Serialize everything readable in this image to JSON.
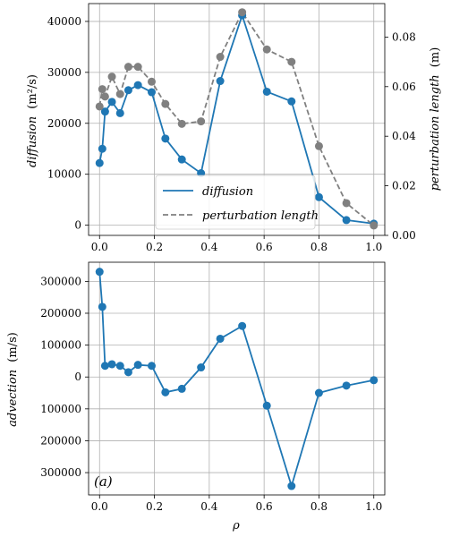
{
  "chart_data": [
    {
      "type": "line",
      "x": [
        0.0,
        0.01,
        0.02,
        0.045,
        0.075,
        0.105,
        0.14,
        0.19,
        0.24,
        0.3,
        0.37,
        0.44,
        0.52,
        0.61,
        0.7,
        0.8,
        0.9,
        1.0
      ],
      "series": [
        {
          "name": "diffusion",
          "axis": "left",
          "color": "#1f77b4",
          "style": "solid",
          "values": [
            12200,
            15000,
            22300,
            24200,
            22000,
            26500,
            27500,
            26100,
            17000,
            12900,
            10200,
            28300,
            41200,
            26200,
            24300,
            5500,
            1000,
            300
          ]
        },
        {
          "name": "perturbation length",
          "axis": "right",
          "color": "#808080",
          "style": "dashed",
          "values": [
            0.052,
            0.059,
            0.056,
            0.064,
            0.057,
            0.068,
            0.068,
            0.062,
            0.053,
            0.045,
            0.046,
            0.072,
            0.09,
            0.075,
            0.07,
            0.036,
            0.013,
            0.004
          ]
        }
      ],
      "xlim": [
        -0.04,
        1.04
      ],
      "ylim": [
        -2000,
        43500
      ],
      "y2lim": [
        0.0,
        0.0935
      ],
      "x_ticks": [
        "0.0",
        "0.2",
        "0.4",
        "0.6",
        "0.8",
        "1.0"
      ],
      "y_ticks": [
        "0",
        "10000",
        "20000",
        "30000",
        "40000"
      ],
      "y2_ticks": [
        "0.00",
        "0.02",
        "0.04",
        "0.06",
        "0.08"
      ],
      "ylabel_main": "diffusion",
      "ylabel_unit": "(m²/s)",
      "y2label_main": "perturbation length",
      "y2label_unit": "(m)",
      "legend_position": "lower center",
      "grid": true
    },
    {
      "type": "line",
      "x": [
        0.0,
        0.01,
        0.02,
        0.045,
        0.075,
        0.105,
        0.14,
        0.19,
        0.24,
        0.3,
        0.37,
        0.44,
        0.52,
        0.61,
        0.7,
        0.8,
        0.9,
        1.0
      ],
      "series": [
        {
          "color": "#1f77b4",
          "values": [
            330000,
            220000,
            35000,
            40000,
            35000,
            15000,
            38000,
            35000,
            -48000,
            -37000,
            30000,
            120000,
            160000,
            -90000,
            -342000,
            -50000,
            -27000,
            -10000
          ]
        }
      ],
      "xlim": [
        -0.04,
        1.04
      ],
      "ylim": [
        -370000,
        360000
      ],
      "x_ticks": [
        "0.0",
        "0.2",
        "0.4",
        "0.6",
        "0.8",
        "1.0"
      ],
      "y_ticks": [
        "300000",
        "200000",
        "100000",
        "0",
        "100000",
        "200000",
        "300000"
      ],
      "ylabel_main": "advection",
      "ylabel_unit": "(m/s)",
      "xlabel": "ρ",
      "annotation": "(a)",
      "grid": true
    }
  ]
}
